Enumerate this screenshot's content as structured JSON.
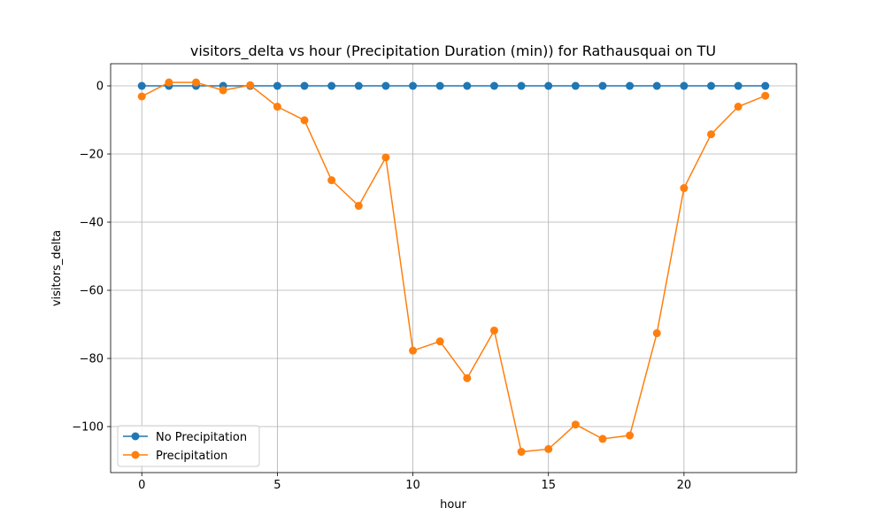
{
  "chart_data": {
    "type": "line",
    "title": "visitors_delta vs hour (Precipitation Duration (min)) for Rathausquai on TU",
    "xlabel": "hour",
    "ylabel": "visitors_delta",
    "xlim": [
      -1.15,
      24.15
    ],
    "ylim": [
      -113.5,
      6.5
    ],
    "xticks": [
      0,
      5,
      10,
      15,
      20
    ],
    "yticks": [
      0,
      -20,
      -40,
      -60,
      -80,
      -100
    ],
    "xtick_labels": [
      "0",
      "5",
      "10",
      "15",
      "20"
    ],
    "ytick_labels": [
      "0",
      "−20",
      "−40",
      "−60",
      "−80",
      "−100"
    ],
    "grid": true,
    "legend_position": "lower-left",
    "x": [
      0,
      1,
      2,
      3,
      4,
      5,
      6,
      7,
      8,
      9,
      10,
      11,
      12,
      13,
      14,
      15,
      16,
      17,
      18,
      19,
      20,
      21,
      22,
      23
    ],
    "series": [
      {
        "name": "No Precipitation",
        "color": "#1f77b4",
        "values": [
          0,
          0,
          0,
          0,
          0,
          0,
          0,
          0,
          0,
          0,
          0,
          0,
          0,
          0,
          0,
          0,
          0,
          0,
          0,
          0,
          0,
          0,
          0,
          0
        ]
      },
      {
        "name": "Precipitation",
        "color": "#ff7f0e",
        "values": [
          -3.1,
          1.0,
          1.0,
          -1.3,
          0.2,
          -6.1,
          -10.1,
          -27.7,
          -35.2,
          -21.0,
          -77.7,
          -75.0,
          -85.8,
          -71.8,
          -107.4,
          -106.6,
          -99.4,
          -103.6,
          -102.6,
          -72.6,
          -30.0,
          -14.2,
          -6.1,
          -2.9
        ]
      }
    ]
  }
}
